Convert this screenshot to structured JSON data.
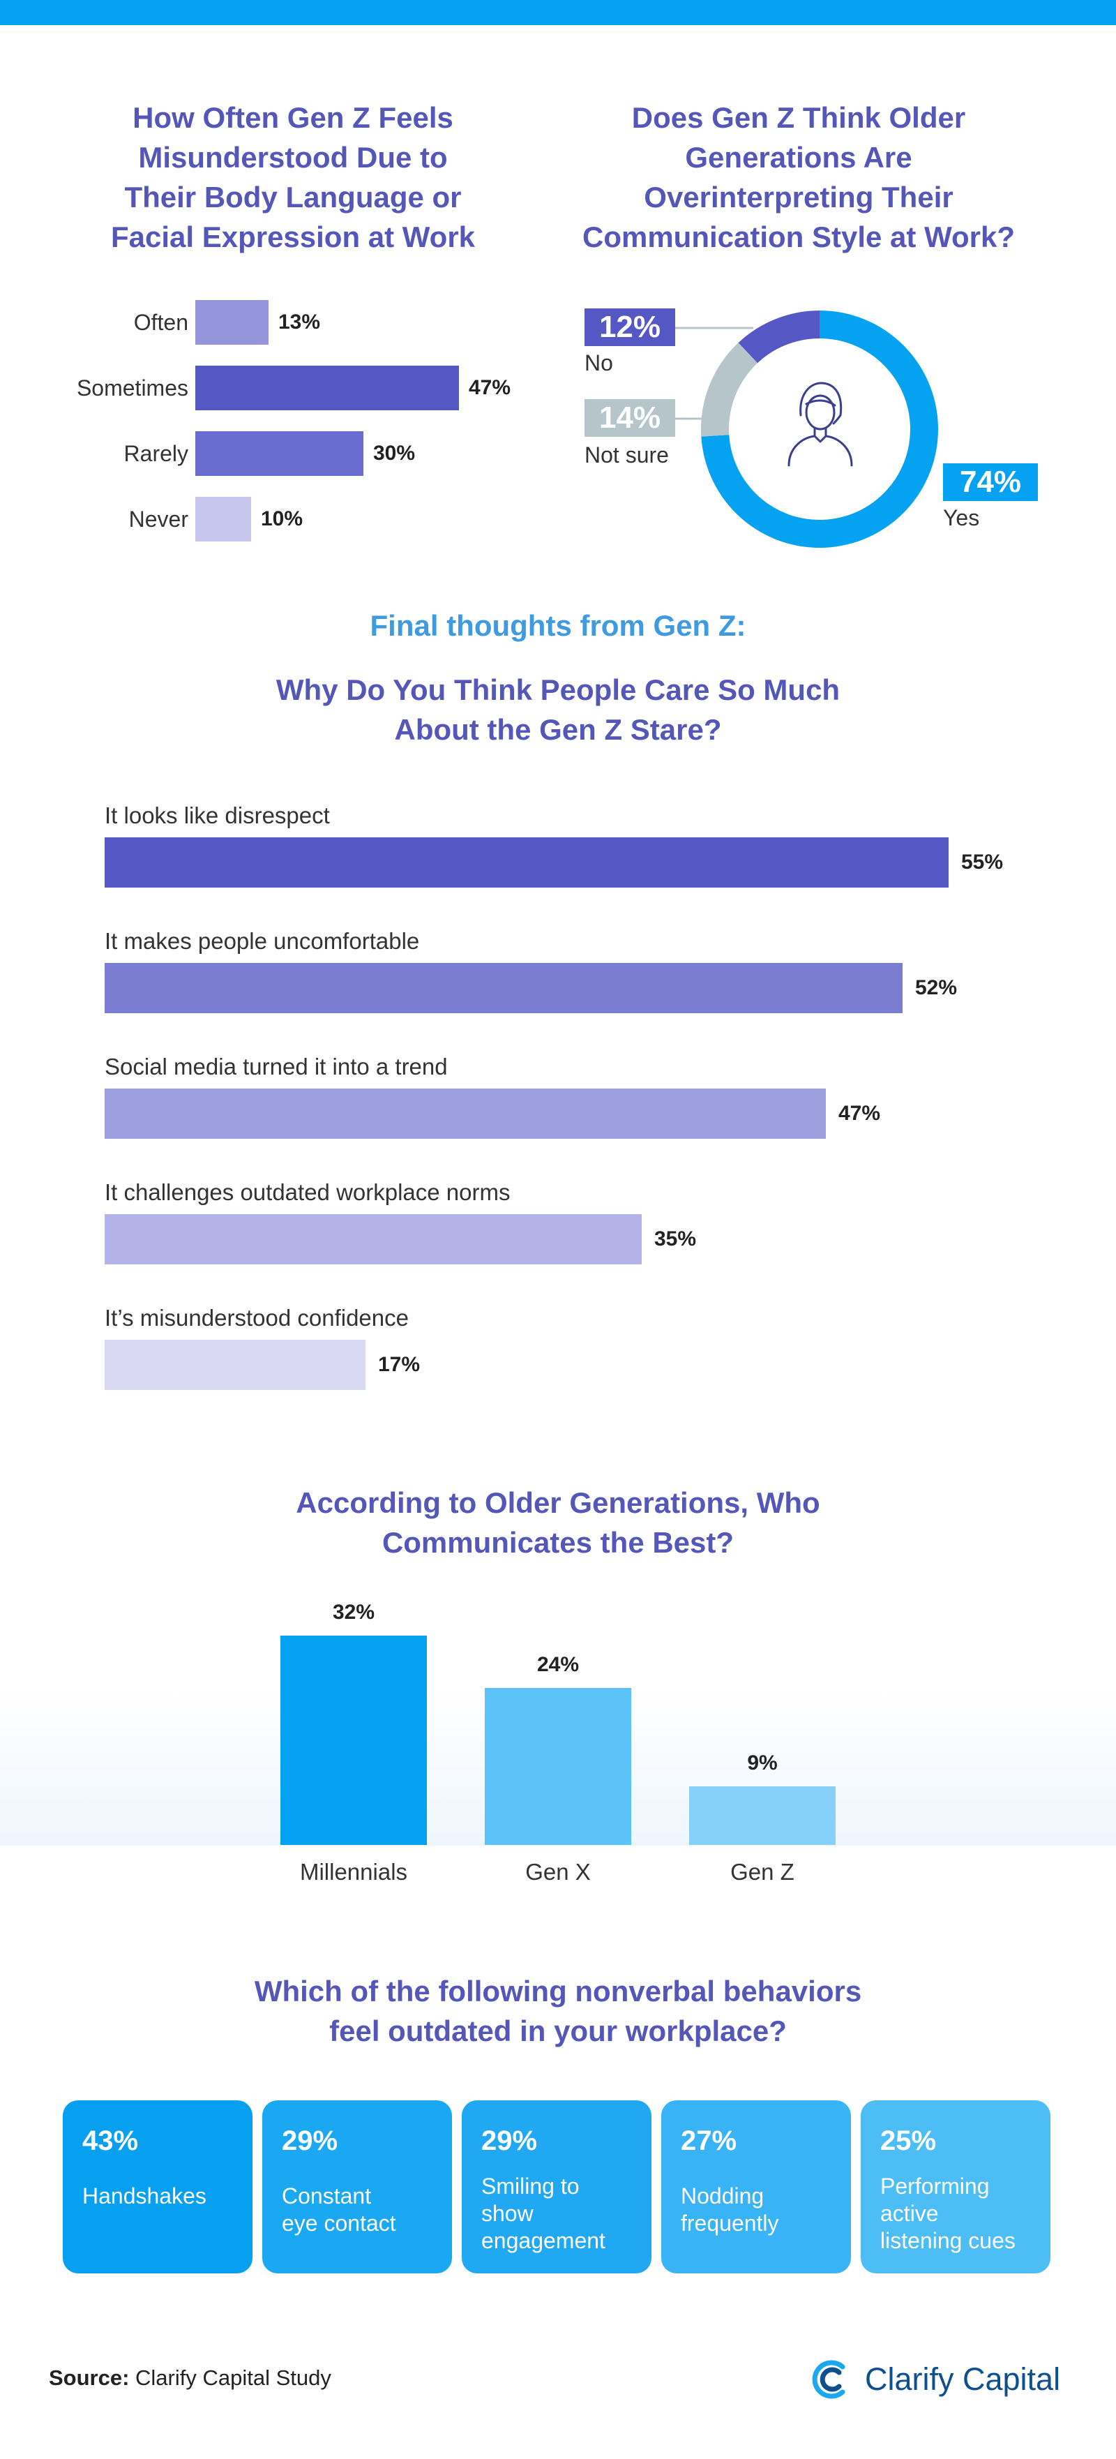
{
  "colors": {
    "topbar": "#05a2f2",
    "title": "#5557b8",
    "subtitle": "#3e9be0"
  },
  "chart_data": [
    {
      "type": "bar",
      "orientation": "horizontal",
      "title": "How Often Gen Z Feels Misunderstood Due to Their Body Language or Facial Expression at Work",
      "title_lines": [
        "How Often Gen Z Feels",
        "Misunderstood Due to",
        "Their Body Language or",
        "Facial Expression at Work"
      ],
      "categories": [
        "Often",
        "Sometimes",
        "Rarely",
        "Never"
      ],
      "values": [
        13,
        47,
        30,
        10
      ],
      "value_labels": [
        "13%",
        "47%",
        "30%",
        "10%"
      ],
      "colors": [
        "#9595dc",
        "#5457c4",
        "#6b6cd0",
        "#c6c6ef"
      ],
      "xlim": [
        0,
        47
      ]
    },
    {
      "type": "pie",
      "title": "Does Gen Z Think Older Generations Are Overinterpreting Their Communication Style at Work?",
      "title_lines": [
        "Does Gen Z Think Older",
        "Generations Are",
        "Overinterpreting Their",
        "Communication Style at Work?"
      ],
      "categories": [
        "Yes",
        "No",
        "Not sure"
      ],
      "values": [
        74,
        12,
        14
      ],
      "value_labels": [
        "74%",
        "12%",
        "14%"
      ],
      "colors": [
        "#05a2f2",
        "#5457c4",
        "#b5c5c9"
      ],
      "donut": true,
      "center_icon": "person-icon"
    },
    {
      "type": "bar",
      "orientation": "horizontal",
      "kicker": "Final thoughts from Gen Z:",
      "title": "Why Do You Think People Care So Much About the Gen Z Stare?",
      "title_lines": [
        "Why Do You Think People Care So Much",
        "About the Gen Z Stare?"
      ],
      "categories": [
        "It looks like disrespect",
        "It makes people uncomfortable",
        "Social media turned it into a trend",
        "It challenges outdated workplace norms",
        "It’s misunderstood confidence"
      ],
      "values": [
        55,
        52,
        47,
        35,
        17
      ],
      "value_labels": [
        "55%",
        "52%",
        "47%",
        "35%",
        "17%"
      ],
      "colors": [
        "#5457c4",
        "#7b7dd3",
        "#9e9fdf",
        "#b3b3e7",
        "#d9d9f4"
      ],
      "xlim": [
        0,
        55
      ]
    },
    {
      "type": "bar",
      "orientation": "vertical",
      "title": "According to Older Generations, Who Communicates the Best?",
      "title_lines": [
        "According to Older Generations, Who",
        "Communicates the Best?"
      ],
      "categories": [
        "Millennials",
        "Gen X",
        "Gen Z"
      ],
      "values": [
        32,
        24,
        9
      ],
      "value_labels": [
        "32%",
        "24%",
        "9%"
      ],
      "colors": [
        "#05a2f2",
        "#5bc3f8",
        "#87d1f8"
      ],
      "ylim": [
        0,
        32
      ]
    },
    {
      "type": "table",
      "title": "Which of the following nonverbal behaviors feel outdated in your workplace?",
      "title_lines": [
        "Which of the following nonverbal behaviors",
        "feel outdated in your workplace?"
      ],
      "categories": [
        "Handshakes",
        "Constant eye contact",
        "Smiling to show engagement",
        "Nodding frequently",
        "Performing active listening cues"
      ],
      "category_lines": [
        [
          "Handshakes"
        ],
        [
          "Constant",
          "eye contact"
        ],
        [
          "Smiling to",
          "show",
          "engagement"
        ],
        [
          "Nodding",
          "frequently"
        ],
        [
          "Performing",
          "active",
          "listening cues"
        ]
      ],
      "values": [
        43,
        29,
        29,
        27,
        25
      ],
      "value_labels": [
        "43%",
        "29%",
        "29%",
        "27%",
        "25%"
      ],
      "colors": [
        "#079ff0",
        "#1aa8f2",
        "#20a9f2",
        "#38b3f5",
        "#4dbdf6"
      ]
    }
  ],
  "footer": {
    "source_label": "Source:",
    "source_text": " Clarify Capital Study",
    "logo_text": "Clarify Capital",
    "logo_icon": "clarify-logo-icon",
    "logo_color": "#0e4f8f"
  }
}
